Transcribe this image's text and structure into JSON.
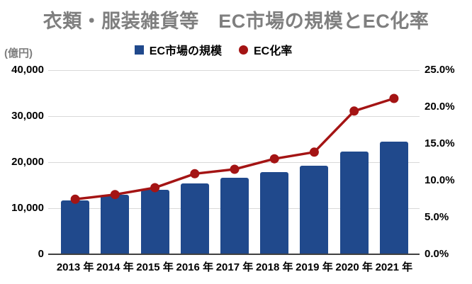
{
  "title": "衣類・服装雑貨等　EC市場の規模とEC化率",
  "legend": {
    "bar_label": "EC市場の規模",
    "line_label": "EC化率"
  },
  "colors": {
    "bar": "#20498c",
    "line": "#a41414",
    "title_gray": "#7f7f7f",
    "gridline": "#d9d9d9"
  },
  "chart_data": {
    "type": "combo-bar-line",
    "title": "衣類・服装雑貨等　EC市場の規模とEC化率",
    "categories": [
      "2013 年",
      "2014 年",
      "2015 年",
      "2016 年",
      "2017 年",
      "2018 年",
      "2019 年",
      "2020 年",
      "2021 年"
    ],
    "series": [
      {
        "name": "EC市場の規模",
        "type": "bar",
        "axis": "left",
        "color": "#20498c",
        "values": [
          11590,
          12822,
          13839,
          15297,
          16454,
          17728,
          19100,
          22203,
          24279
        ]
      },
      {
        "name": "EC化率",
        "type": "line",
        "axis": "right",
        "color": "#a41414",
        "values": [
          7.47,
          8.11,
          9.04,
          10.93,
          11.54,
          12.96,
          13.87,
          19.44,
          21.15
        ]
      }
    ],
    "left_axis": {
      "unit": "(億円)",
      "min": 0,
      "max": 40000,
      "ticks": [
        "40,000",
        "30,000",
        "20,000",
        "10,000",
        "0"
      ]
    },
    "right_axis": {
      "min": 0,
      "max": 25,
      "ticks": [
        "25.0%",
        "20.0%",
        "15.0%",
        "10.0%",
        "5.0%",
        "0.0%"
      ]
    },
    "grid": "horizontal",
    "legend_position": "top"
  }
}
